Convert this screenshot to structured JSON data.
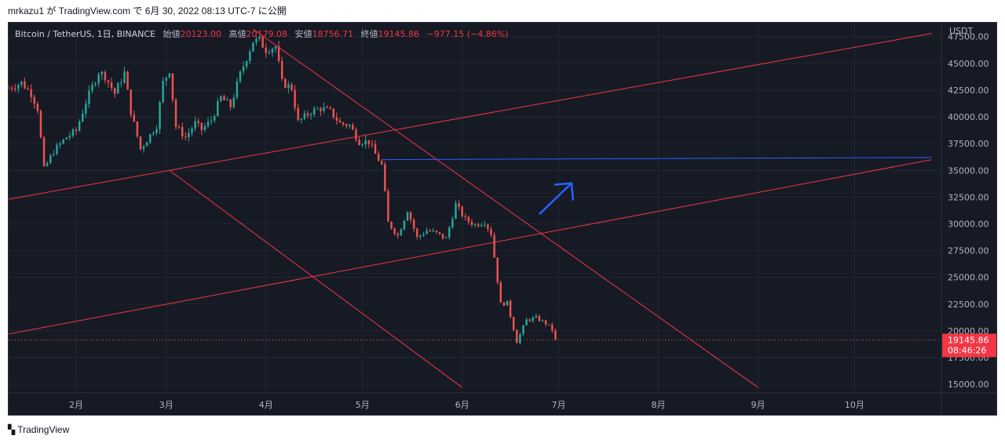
{
  "header": {
    "publish_text": "mrkazu1 が TradingView.com で 6月 30, 2022 08:13 UTC-7 に公開"
  },
  "legend": {
    "symbol": "Bitcoin / TetherUS, 1日, BINANCE",
    "open_label": "始値",
    "open": "20123.00",
    "high_label": "高値",
    "high": "20179.08",
    "low_label": "安値",
    "low": "18756.71",
    "close_label": "終値",
    "close": "19145.86",
    "change": "−977.15 (−4.86%)"
  },
  "price_axis": {
    "currency": "USDT",
    "current_price": "19145.86",
    "countdown": "08:46:26"
  },
  "footer": {
    "brand": "TradingView",
    "logo_icon": "tradingview-logo-icon"
  },
  "colors": {
    "up": "#26a69a",
    "down": "#ef5350",
    "trendline": "#f23645",
    "horizontal_line": "#2962ff",
    "arrow": "#2962ff",
    "background": "#161a25"
  },
  "chart_data": {
    "type": "candlestick",
    "ylim": [
      14200,
      48800
    ],
    "y_ticks": [
      15000,
      17500,
      20000,
      22500,
      25000,
      27500,
      30000,
      32500,
      35000,
      37500,
      40000,
      42500,
      45000,
      47500
    ],
    "y_tick_labels": [
      "15000.00",
      "17500.00",
      "20000.00",
      "22500.00",
      "25000.00",
      "27500.00",
      "30000.00",
      "32500.00",
      "35000.00",
      "37500.00",
      "40000.00",
      "42500.00",
      "45000.00",
      "47500.00"
    ],
    "x_ticks": [
      {
        "date": "2022-02-01",
        "label": "2月"
      },
      {
        "date": "2022-03-01",
        "label": "3月"
      },
      {
        "date": "2022-04-01",
        "label": "4月"
      },
      {
        "date": "2022-05-01",
        "label": "5月"
      },
      {
        "date": "2022-06-01",
        "label": "6月"
      },
      {
        "date": "2022-07-01",
        "label": "7月"
      },
      {
        "date": "2022-08-01",
        "label": "8月"
      },
      {
        "date": "2022-09-01",
        "label": "9月"
      },
      {
        "date": "2022-10-01",
        "label": "10月"
      }
    ],
    "xlim": [
      "2022-01-11",
      "2022-10-28"
    ],
    "price_path": [
      [
        "2022-01-11",
        42700
      ],
      [
        "2022-01-15",
        43200
      ],
      [
        "2022-01-18",
        42200
      ],
      [
        "2022-01-20",
        40800
      ],
      [
        "2022-01-22",
        35100
      ],
      [
        "2022-01-25",
        36800
      ],
      [
        "2022-01-29",
        38100
      ],
      [
        "2022-02-01",
        38700
      ],
      [
        "2022-02-04",
        41400
      ],
      [
        "2022-02-08",
        44200
      ],
      [
        "2022-02-10",
        43800
      ],
      [
        "2022-02-13",
        42200
      ],
      [
        "2022-02-16",
        44100
      ],
      [
        "2022-02-18",
        40500
      ],
      [
        "2022-02-21",
        37000
      ],
      [
        "2022-02-24",
        38300
      ],
      [
        "2022-02-26",
        39200
      ],
      [
        "2022-02-28",
        43200
      ],
      [
        "2022-03-02",
        44400
      ],
      [
        "2022-03-04",
        39100
      ],
      [
        "2022-03-07",
        38100
      ],
      [
        "2022-03-10",
        39400
      ],
      [
        "2022-03-12",
        38800
      ],
      [
        "2022-03-15",
        39700
      ],
      [
        "2022-03-18",
        41800
      ],
      [
        "2022-03-21",
        41000
      ],
      [
        "2022-03-24",
        44000
      ],
      [
        "2022-03-28",
        47100
      ],
      [
        "2022-03-30",
        47100
      ],
      [
        "2022-04-01",
        46300
      ],
      [
        "2022-04-04",
        46600
      ],
      [
        "2022-04-06",
        43200
      ],
      [
        "2022-04-09",
        42700
      ],
      [
        "2022-04-11",
        39500
      ],
      [
        "2022-04-15",
        40500
      ],
      [
        "2022-04-18",
        40800
      ],
      [
        "2022-04-21",
        40500
      ],
      [
        "2022-04-24",
        39400
      ],
      [
        "2022-04-27",
        39200
      ],
      [
        "2022-04-30",
        37700
      ],
      [
        "2022-05-03",
        37700
      ],
      [
        "2022-05-05",
        36500
      ],
      [
        "2022-05-07",
        35500
      ],
      [
        "2022-05-09",
        30100
      ],
      [
        "2022-05-12",
        28900
      ],
      [
        "2022-05-15",
        31300
      ],
      [
        "2022-05-18",
        28700
      ],
      [
        "2022-05-21",
        29400
      ],
      [
        "2022-05-24",
        29100
      ],
      [
        "2022-05-27",
        28600
      ],
      [
        "2022-05-30",
        31800
      ],
      [
        "2022-06-02",
        30400
      ],
      [
        "2022-06-05",
        29900
      ],
      [
        "2022-06-08",
        30200
      ],
      [
        "2022-06-10",
        29100
      ],
      [
        "2022-06-13",
        22500
      ],
      [
        "2022-06-15",
        22600
      ],
      [
        "2022-06-18",
        19000
      ],
      [
        "2022-06-21",
        21000
      ],
      [
        "2022-06-24",
        21200
      ],
      [
        "2022-06-27",
        20700
      ],
      [
        "2022-06-29",
        20100
      ],
      [
        "2022-06-30",
        19146
      ]
    ],
    "annotations": {
      "upper_rising_line": [
        [
          "2022-01-11",
          32300
        ],
        [
          "2022-10-25",
          47800
        ]
      ],
      "lower_rising_line": [
        [
          "2022-01-11",
          19700
        ],
        [
          "2022-10-25",
          36000
        ]
      ],
      "descending_line": [
        [
          "2022-03-28",
          48200
        ],
        [
          "2022-09-01",
          14700
        ]
      ],
      "lower_descending_line": [
        [
          "2022-03-02",
          35000
        ],
        [
          "2022-06-01",
          14700
        ]
      ],
      "horizontal_line": [
        [
          "2022-05-07",
          36000
        ],
        [
          "2022-10-25",
          36200
        ]
      ],
      "arrow": [
        [
          "2022-06-25",
          30900
        ],
        [
          "2022-07-05",
          33800
        ]
      ]
    }
  }
}
